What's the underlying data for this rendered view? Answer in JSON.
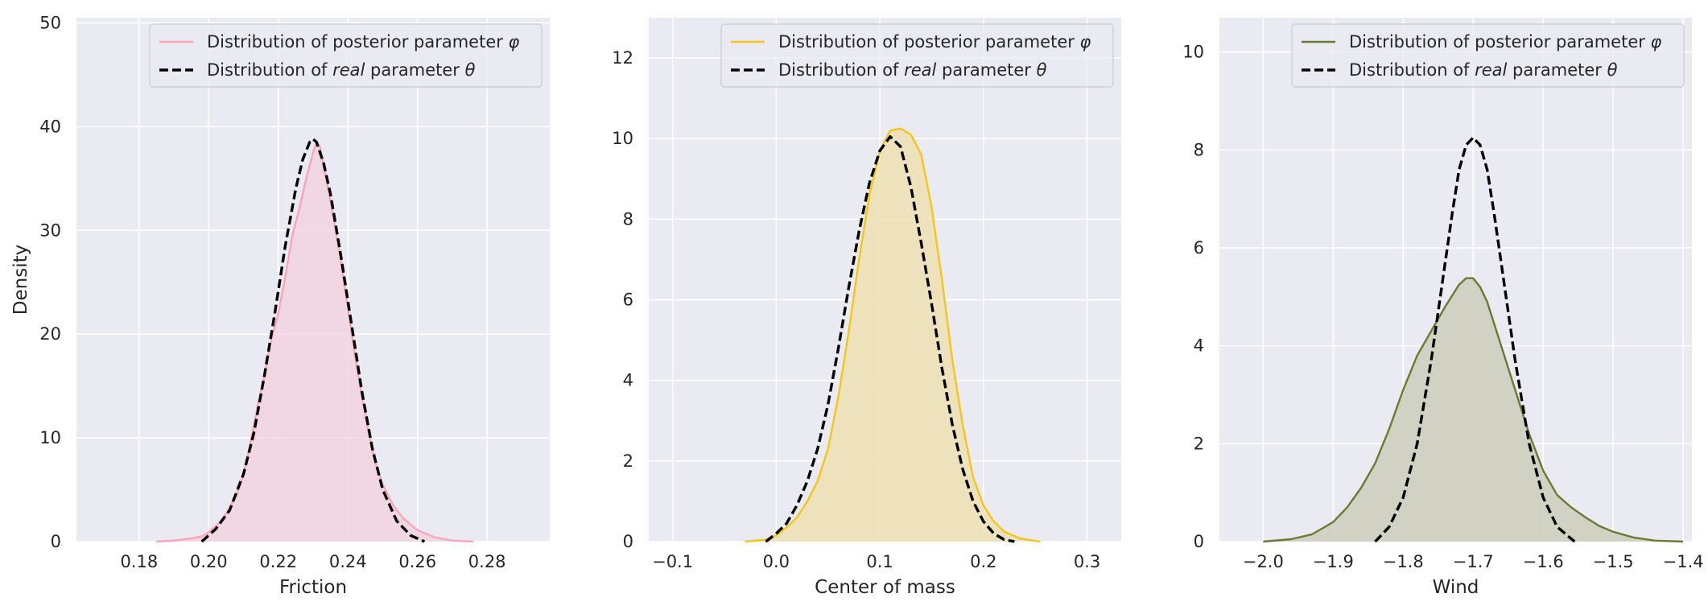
{
  "chart_data": [
    {
      "type": "area",
      "xlabel": "Friction",
      "ylabel": "Density",
      "xlim": [
        0.162,
        0.298
      ],
      "ylim": [
        0,
        50.5
      ],
      "xticks": [
        0.18,
        0.2,
        0.22,
        0.24,
        0.26,
        0.28
      ],
      "xtick_labels": [
        "0.18",
        "0.20",
        "0.22",
        "0.24",
        "0.26",
        "0.28"
      ],
      "yticks": [
        0,
        10,
        20,
        30,
        40,
        50
      ],
      "ytick_labels": [
        "0",
        "10",
        "20",
        "30",
        "40",
        "50"
      ],
      "grid": true,
      "legend_position": "top-right",
      "series": [
        {
          "name": "Distribution of posterior parameter φ",
          "style": "filled-kde",
          "color": "#FFA4B6",
          "fill": "#F2D4E0",
          "x": [
            0.185,
            0.19,
            0.195,
            0.198,
            0.2,
            0.203,
            0.205,
            0.208,
            0.21,
            0.212,
            0.214,
            0.216,
            0.218,
            0.22,
            0.222,
            0.224,
            0.226,
            0.228,
            0.23,
            0.231,
            0.232,
            0.234,
            0.236,
            0.238,
            0.24,
            0.242,
            0.244,
            0.246,
            0.248,
            0.25,
            0.253,
            0.256,
            0.26,
            0.265,
            0.27,
            0.276
          ],
          "y": [
            0.0,
            0.1,
            0.3,
            0.5,
            0.9,
            1.8,
            2.7,
            4.5,
            6.5,
            9.5,
            13.0,
            16.0,
            19.5,
            22.0,
            25.5,
            29.5,
            32.0,
            35.0,
            37.5,
            38.5,
            38.0,
            34.5,
            31.0,
            27.0,
            22.5,
            18.0,
            14.0,
            10.5,
            7.5,
            5.5,
            3.5,
            2.2,
            1.1,
            0.4,
            0.1,
            0.0
          ]
        },
        {
          "name": "Distribution of real parameter θ",
          "style": "dashed",
          "color": "#000000",
          "x": [
            0.198,
            0.202,
            0.206,
            0.21,
            0.213,
            0.216,
            0.219,
            0.222,
            0.225,
            0.227,
            0.229,
            0.23,
            0.231,
            0.233,
            0.235,
            0.238,
            0.241,
            0.244,
            0.247,
            0.25,
            0.254,
            0.258,
            0.262
          ],
          "y": [
            0.0,
            1.2,
            3.0,
            6.5,
            10.5,
            16.0,
            22.0,
            28.5,
            34.0,
            36.8,
            38.5,
            38.8,
            38.5,
            36.5,
            33.5,
            27.5,
            21.0,
            14.5,
            9.0,
            5.0,
            2.0,
            0.6,
            0.0
          ]
        }
      ]
    },
    {
      "type": "area",
      "xlabel": "Center of mass",
      "ylabel": "",
      "xlim": [
        -0.123,
        0.333
      ],
      "ylim": [
        0,
        13.0
      ],
      "xticks": [
        -0.1,
        0.0,
        0.1,
        0.2,
        0.3
      ],
      "xtick_labels": [
        "−0.1",
        "0.0",
        "0.1",
        "0.2",
        "0.3"
      ],
      "yticks": [
        0,
        2,
        4,
        6,
        8,
        10,
        12
      ],
      "ytick_labels": [
        "0",
        "2",
        "4",
        "6",
        "8",
        "10",
        "12"
      ],
      "grid": true,
      "legend_position": "top-right",
      "series": [
        {
          "name": "Distribution of posterior parameter φ",
          "style": "filled-kde",
          "color": "#F5C518",
          "fill": "#EDE0B2",
          "x": [
            -0.03,
            -0.01,
            0.0,
            0.01,
            0.02,
            0.03,
            0.04,
            0.05,
            0.06,
            0.07,
            0.08,
            0.09,
            0.1,
            0.11,
            0.12,
            0.13,
            0.14,
            0.15,
            0.16,
            0.17,
            0.18,
            0.19,
            0.2,
            0.21,
            0.22,
            0.235,
            0.255
          ],
          "y": [
            0.0,
            0.05,
            0.15,
            0.35,
            0.6,
            1.0,
            1.5,
            2.3,
            3.6,
            5.2,
            7.0,
            8.6,
            9.7,
            10.2,
            10.25,
            10.1,
            9.6,
            8.3,
            6.5,
            4.5,
            2.9,
            1.6,
            0.9,
            0.5,
            0.25,
            0.08,
            0.0
          ]
        },
        {
          "name": "Distribution of real parameter θ",
          "style": "dashed",
          "color": "#000000",
          "x": [
            -0.01,
            0.0,
            0.01,
            0.02,
            0.03,
            0.04,
            0.05,
            0.06,
            0.07,
            0.08,
            0.09,
            0.1,
            0.11,
            0.12,
            0.13,
            0.14,
            0.15,
            0.16,
            0.17,
            0.18,
            0.19,
            0.2,
            0.21,
            0.22,
            0.23
          ],
          "y": [
            0.0,
            0.2,
            0.45,
            0.9,
            1.5,
            2.3,
            3.4,
            4.8,
            6.3,
            7.7,
            8.9,
            9.7,
            10.05,
            9.8,
            8.8,
            7.4,
            5.9,
            4.3,
            2.9,
            1.8,
            1.0,
            0.5,
            0.2,
            0.05,
            0.0
          ]
        }
      ]
    },
    {
      "type": "area",
      "xlabel": "Wind",
      "ylabel": "",
      "xlim": [
        -2.0625,
        -1.3875
      ],
      "ylim": [
        0,
        10.7
      ],
      "xticks": [
        -2.0,
        -1.9,
        -1.8,
        -1.7,
        -1.6,
        -1.5,
        -1.4
      ],
      "xtick_labels": [
        "−2.0",
        "−1.9",
        "−1.8",
        "−1.7",
        "−1.6",
        "−1.5",
        "−1.4"
      ],
      "yticks": [
        0,
        2,
        4,
        6,
        8,
        10
      ],
      "ytick_labels": [
        "0",
        "2",
        "4",
        "6",
        "8",
        "10"
      ],
      "grid": true,
      "legend_position": "top-right",
      "series": [
        {
          "name": "Distribution of posterior parameter φ",
          "style": "filled-kde",
          "color": "#6B7A2E",
          "fill": "#CCCCBC",
          "x": [
            -2.0,
            -1.96,
            -1.93,
            -1.9,
            -1.88,
            -1.86,
            -1.84,
            -1.82,
            -1.8,
            -1.78,
            -1.76,
            -1.74,
            -1.72,
            -1.71,
            -1.7,
            -1.69,
            -1.68,
            -1.66,
            -1.64,
            -1.62,
            -1.6,
            -1.58,
            -1.56,
            -1.54,
            -1.52,
            -1.5,
            -1.47,
            -1.44,
            -1.4
          ],
          "y": [
            0.0,
            0.05,
            0.15,
            0.4,
            0.7,
            1.1,
            1.6,
            2.3,
            3.1,
            3.8,
            4.3,
            4.8,
            5.25,
            5.38,
            5.38,
            5.2,
            4.9,
            4.0,
            3.1,
            2.2,
            1.45,
            0.95,
            0.7,
            0.5,
            0.32,
            0.2,
            0.08,
            0.02,
            0.0
          ]
        },
        {
          "name": "Distribution of real parameter θ",
          "style": "dashed",
          "color": "#000000",
          "x": [
            -1.84,
            -1.82,
            -1.8,
            -1.78,
            -1.76,
            -1.74,
            -1.73,
            -1.72,
            -1.71,
            -1.7,
            -1.69,
            -1.68,
            -1.67,
            -1.66,
            -1.64,
            -1.62,
            -1.6,
            -1.58,
            -1.555
          ],
          "y": [
            0.0,
            0.3,
            0.9,
            2.0,
            3.7,
            5.7,
            6.7,
            7.6,
            8.1,
            8.25,
            8.1,
            7.6,
            6.7,
            5.7,
            3.7,
            2.0,
            0.9,
            0.3,
            0.0
          ]
        }
      ]
    }
  ]
}
